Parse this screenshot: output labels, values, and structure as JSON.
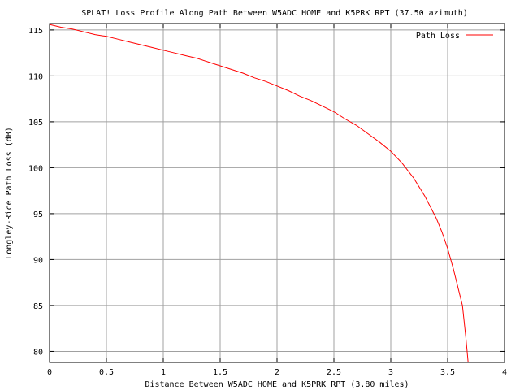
{
  "chart_data": {
    "type": "line",
    "title": "SPLAT! Loss Profile Along Path Between W5ADC HOME and K5PRK RPT (37.50  azimuth)",
    "xlabel": "Distance Between W5ADC HOME and K5PRK RPT (3.80 miles)",
    "ylabel": "Longley-Rice Path Loss (dB)",
    "xlim": [
      0,
      4
    ],
    "ylim": [
      78.8,
      115.7
    ],
    "x_ticks": [
      0,
      0.5,
      1,
      1.5,
      2,
      2.5,
      3,
      3.5,
      4
    ],
    "x_tick_labels": [
      "0",
      "0.5",
      "1",
      "1.5",
      "2",
      "2.5",
      "3",
      "3.5",
      "4"
    ],
    "y_ticks": [
      80,
      85,
      90,
      95,
      100,
      105,
      110,
      115
    ],
    "y_tick_labels": [
      "80",
      "85",
      "90",
      "95",
      "100",
      "105",
      "110",
      "115"
    ],
    "grid": true,
    "legend_position": "top-right",
    "series": [
      {
        "name": "Path Loss",
        "color": "#ff0000",
        "x": [
          0,
          0.1,
          0.2,
          0.3,
          0.4,
          0.5,
          0.6,
          0.7,
          0.8,
          0.9,
          1.0,
          1.1,
          1.2,
          1.3,
          1.4,
          1.5,
          1.6,
          1.7,
          1.8,
          1.9,
          2.0,
          2.1,
          2.2,
          2.3,
          2.4,
          2.5,
          2.6,
          2.7,
          2.8,
          2.9,
          3.0,
          3.1,
          3.2,
          3.3,
          3.4,
          3.45,
          3.5,
          3.55,
          3.6,
          3.63,
          3.66,
          3.68
        ],
        "values": [
          115.6,
          115.3,
          115.1,
          114.8,
          114.5,
          114.3,
          114.0,
          113.7,
          113.4,
          113.1,
          112.8,
          112.5,
          112.2,
          111.9,
          111.5,
          111.1,
          110.7,
          110.3,
          109.8,
          109.4,
          108.9,
          108.4,
          107.8,
          107.3,
          106.7,
          106.1,
          105.3,
          104.6,
          103.7,
          102.8,
          101.8,
          100.5,
          98.9,
          96.9,
          94.5,
          93.0,
          91.2,
          89.0,
          86.5,
          85.0,
          81.5,
          78.8
        ]
      }
    ]
  }
}
